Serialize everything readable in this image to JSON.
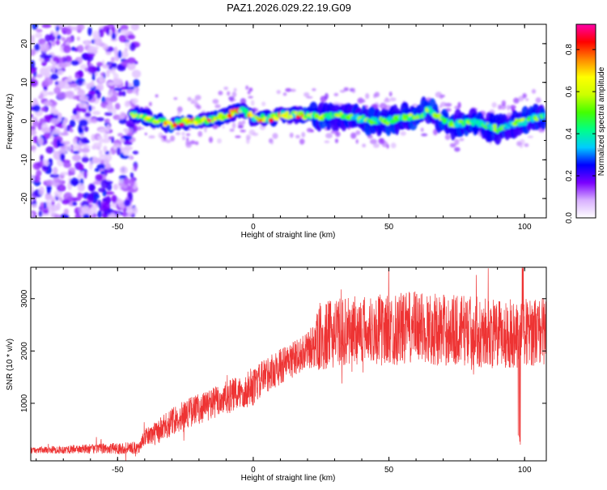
{
  "title": "PAZ1.2026.029.22.19.G09",
  "chart_data": [
    {
      "type": "heatmap",
      "name": "spectrogram",
      "xlabel": "Height of straight line (km)",
      "ylabel": "Frequency (Hz)",
      "xlim": [
        -82,
        108
      ],
      "ylim": [
        -25,
        25
      ],
      "xticks": [
        -50,
        0,
        50,
        100
      ],
      "xtick_labels": [
        "-50",
        "0",
        "50",
        "100"
      ],
      "yticks": [
        -20,
        -10,
        0,
        10,
        20
      ],
      "ytick_labels": [
        "-20",
        "-10",
        "0",
        "10",
        "20"
      ],
      "ridge": {
        "description": "Dominant spectral ridge (frequency in Hz vs height in km)",
        "x": [
          -50,
          -45,
          -40,
          -35,
          -30,
          -25,
          -20,
          -15,
          -10,
          -5,
          0,
          5,
          10,
          15,
          20,
          25,
          30,
          35,
          40,
          45,
          50,
          55,
          60,
          65,
          70,
          75,
          80,
          85,
          90,
          95,
          100,
          105
        ],
        "y": [
          3,
          2,
          1,
          0,
          -1,
          0,
          0,
          0.5,
          1.5,
          3,
          1,
          0.5,
          1.5,
          1.5,
          1.5,
          1,
          1.5,
          1.5,
          0.5,
          0,
          0,
          1,
          1,
          3,
          0,
          -1,
          0,
          -1,
          -2,
          -1,
          0,
          1
        ]
      },
      "noise_region": {
        "x_from": -82,
        "x_to": -43
      }
    },
    {
      "type": "line",
      "name": "snr",
      "xlabel": "Height of straight line (km)",
      "ylabel": "SNR (10 * v/v)",
      "xlim": [
        -82,
        108
      ],
      "ylim": [
        -100,
        3600
      ],
      "xticks": [
        -50,
        0,
        50,
        100
      ],
      "xtick_labels": [
        "-50",
        "0",
        "50",
        "100"
      ],
      "yticks": [
        1000,
        2000,
        3000
      ],
      "ytick_labels": [
        "1000",
        "2000",
        "3000"
      ],
      "color": "#ee3333",
      "trend": {
        "x": [
          -82,
          -42,
          -40,
          -35,
          -30,
          -25,
          -20,
          -15,
          -10,
          -5,
          0,
          5,
          10,
          15,
          20,
          25,
          30,
          40,
          50,
          60,
          70,
          80,
          90,
          100,
          108
        ],
        "y": [
          100,
          150,
          350,
          450,
          650,
          800,
          900,
          1000,
          1100,
          1200,
          1300,
          1550,
          1700,
          1850,
          2000,
          2250,
          2350,
          2400,
          2400,
          2450,
          2400,
          2400,
          2300,
          2350,
          2400
        ]
      },
      "spread": {
        "x": [
          -82,
          -42,
          -35,
          -20,
          0,
          20,
          25,
          60,
          108
        ],
        "y": [
          60,
          120,
          250,
          300,
          350,
          350,
          650,
          700,
          650
        ]
      }
    }
  ],
  "colorbar": {
    "label": "Normalized spectral amplitude",
    "ticks": [
      0.0,
      0.2,
      0.4,
      0.6,
      0.8
    ],
    "tick_labels": [
      "0.0",
      "0.2",
      "0.4",
      "0.6",
      "0.8"
    ],
    "range": [
      0,
      0.92
    ],
    "colors": [
      "#ffffff",
      "#d8b0ff",
      "#7a00ff",
      "#0000ff",
      "#00ccff",
      "#00ff88",
      "#44ff00",
      "#ccff00",
      "#ffff00",
      "#ff8800",
      "#ff0000",
      "#ff00aa"
    ]
  }
}
